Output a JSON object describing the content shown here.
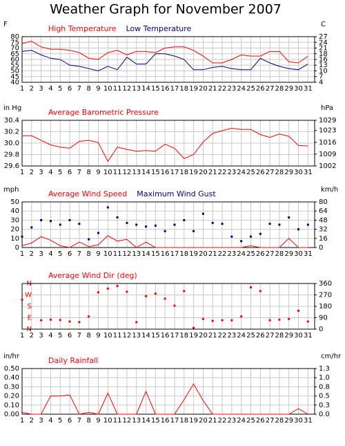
{
  "title": "Weather Graph for November 2007",
  "chart_data": [
    {
      "type": "line",
      "ylabel": "F",
      "y2label": "C",
      "x": [
        1,
        2,
        3,
        4,
        5,
        6,
        7,
        8,
        9,
        10,
        11,
        12,
        13,
        14,
        15,
        16,
        17,
        18,
        19,
        20,
        21,
        22,
        23,
        24,
        25,
        26,
        27,
        28,
        29,
        30,
        31
      ],
      "xlim": [
        1,
        31.7
      ],
      "xticks": [
        1,
        2,
        3,
        4,
        5,
        6,
        7,
        8,
        9,
        10,
        11,
        12,
        13,
        14,
        15,
        16,
        17,
        18,
        19,
        20,
        21,
        22,
        23,
        24,
        25,
        26,
        27,
        28,
        29,
        30,
        31
      ],
      "ylim": [
        40,
        80
      ],
      "yticks": [
        40,
        45,
        50,
        55,
        60,
        65,
        70,
        75,
        80
      ],
      "y2lim": [
        4.44,
        26.67
      ],
      "y2ticks": [
        {
          "value": 4.44,
          "label": "4"
        },
        {
          "value": 7.22,
          "label": "7"
        },
        10,
        {
          "value": 12.78,
          "label": "13"
        },
        {
          "value": 15.56,
          "label": "16"
        },
        {
          "value": 18.33,
          "label": "18"
        },
        {
          "value": 21.11,
          "label": "21"
        },
        {
          "value": 23.89,
          "label": "24"
        },
        {
          "value": 26.67,
          "label": "27"
        }
      ],
      "grid": true,
      "series": [
        {
          "name": "High Temperature",
          "color": "#ff0000",
          "values": [
            74,
            76,
            71,
            69,
            69,
            68,
            66,
            61,
            60,
            66,
            68,
            64,
            67,
            67,
            66,
            70,
            71,
            71,
            68,
            63,
            57,
            57,
            60,
            64,
            63,
            63,
            67,
            67,
            58,
            57,
            63
          ]
        },
        {
          "name": "Low Temperature",
          "color": "#000080",
          "values": [
            67,
            68,
            64,
            61,
            60,
            55,
            54,
            52,
            50,
            54,
            51,
            62,
            56,
            56,
            65,
            65,
            63,
            60,
            51,
            51,
            53,
            54,
            52,
            51,
            51,
            61,
            57,
            54,
            52,
            51,
            56
          ]
        }
      ]
    },
    {
      "type": "line",
      "ylabel": "in Hg",
      "y2label": "hPa",
      "x": [
        1,
        2,
        3,
        4,
        5,
        6,
        7,
        8,
        9,
        10,
        11,
        12,
        13,
        14,
        15,
        16,
        17,
        18,
        19,
        20,
        21,
        22,
        23,
        24,
        25,
        26,
        27,
        28,
        29,
        30,
        31
      ],
      "xlim": [
        1,
        31.7
      ],
      "xticks": [
        1,
        2,
        3,
        4,
        5,
        6,
        7,
        8,
        9,
        10,
        11,
        12,
        13,
        14,
        15,
        16,
        17,
        18,
        19,
        20,
        21,
        22,
        23,
        24,
        25,
        26,
        27,
        28,
        29,
        30,
        31
      ],
      "ylim": [
        29.6,
        30.4
      ],
      "yticks": [
        29.6,
        29.8,
        {
          "value": 30,
          "label": "30.0"
        },
        30.2,
        30.4
      ],
      "y2lim": [
        1002,
        1029
      ],
      "y2ticks": [
        1002,
        1009,
        1016,
        1023,
        1029
      ],
      "grid": true,
      "series": [
        {
          "name": "Average Barometric Pressure",
          "color": "#ff0000",
          "values": [
            30.13,
            30.13,
            30.05,
            29.97,
            29.93,
            29.91,
            30.03,
            30.05,
            30.01,
            29.68,
            29.93,
            29.89,
            29.86,
            29.87,
            29.86,
            29.98,
            29.91,
            29.73,
            29.8,
            30.02,
            30.17,
            30.22,
            30.26,
            30.24,
            30.24,
            30.15,
            30.1,
            30.16,
            30.12,
            29.96,
            29.95
          ]
        }
      ]
    },
    {
      "type": "line",
      "ylabel": "mph",
      "y2label": "km/h",
      "x": [
        1,
        2,
        3,
        4,
        5,
        6,
        7,
        8,
        9,
        10,
        11,
        12,
        13,
        14,
        15,
        16,
        17,
        18,
        19,
        20,
        21,
        22,
        23,
        24,
        25,
        26,
        27,
        28,
        29,
        30,
        31
      ],
      "xlim": [
        1,
        31.7
      ],
      "xticks": [
        1,
        2,
        3,
        4,
        5,
        6,
        7,
        8,
        9,
        10,
        11,
        12,
        13,
        14,
        15,
        16,
        17,
        18,
        19,
        20,
        21,
        22,
        23,
        24,
        25,
        26,
        27,
        28,
        29,
        30,
        31
      ],
      "ylim": [
        0,
        50
      ],
      "yticks": [
        0,
        10,
        20,
        30,
        40,
        50
      ],
      "y2lim": [
        0,
        80
      ],
      "y2ticks": [
        0,
        16,
        32,
        48,
        64,
        80
      ],
      "grid": true,
      "series": [
        {
          "name": "Average Wind Speed",
          "color": "#ff0000",
          "values": [
            2,
            5,
            12,
            8,
            2,
            0,
            6,
            1,
            3,
            13,
            7,
            9,
            0,
            6,
            0,
            0,
            0,
            0,
            0,
            0,
            0,
            0,
            0,
            0,
            2,
            0,
            0,
            0,
            10,
            0,
            0
          ]
        },
        {
          "name": "Maximum Wind Gust",
          "color": "#000080",
          "style": "points",
          "values": [
            12,
            22,
            30,
            29,
            25,
            30,
            26,
            9,
            16,
            44,
            33,
            27,
            25,
            23,
            24,
            18,
            25,
            30,
            18,
            37,
            27,
            26,
            12,
            7,
            12,
            15,
            26,
            25,
            33,
            20,
            25
          ]
        }
      ]
    },
    {
      "type": "scatter",
      "y2label": "",
      "x": [
        1,
        2,
        3,
        4,
        5,
        6,
        7,
        8,
        9,
        10,
        11,
        12,
        13,
        14,
        15,
        16,
        17,
        18,
        19,
        20,
        21,
        22,
        23,
        24,
        25,
        26,
        27,
        28,
        29,
        30,
        31
      ],
      "xlim": [
        1,
        31.7
      ],
      "xticks": [
        1,
        2,
        3,
        4,
        5,
        6,
        7,
        8,
        9,
        10,
        11,
        12,
        13,
        14,
        15,
        16,
        17,
        18,
        19,
        20,
        21,
        22,
        23,
        24,
        25,
        26,
        27,
        28,
        29,
        30,
        31
      ],
      "ylim": [
        0,
        360
      ],
      "yticks": [
        {
          "value": 0,
          "label": "N"
        },
        {
          "value": 90,
          "label": "E"
        },
        {
          "value": 180,
          "label": "S"
        },
        {
          "value": 270,
          "label": "W"
        },
        {
          "value": 360,
          "label": "N"
        }
      ],
      "ytick_color": "#ff0000",
      "y2lim": [
        0,
        360
      ],
      "y2ticks": [
        0,
        90,
        180,
        270,
        360
      ],
      "grid": true,
      "series": [
        {
          "name": "Average Wind Dir (deg)",
          "color": "#ff0000",
          "values": [
            232,
            null,
            70,
            75,
            72,
            60,
            55,
            100,
            290,
            320,
            340,
            295,
            55,
            260,
            280,
            240,
            185,
            300,
            10,
            80,
            65,
            70,
            70,
            100,
            330,
            300,
            70,
            75,
            80,
            145,
            60
          ]
        }
      ]
    },
    {
      "type": "line",
      "ylabel": "in/hr",
      "y2label": "cm/hr",
      "x": [
        1,
        2,
        3,
        4,
        5,
        6,
        7,
        8,
        9,
        10,
        11,
        12,
        13,
        14,
        15,
        16,
        17,
        18,
        19,
        20,
        21,
        22,
        23,
        24,
        25,
        26,
        27,
        28,
        29,
        30,
        31
      ],
      "xlim": [
        1,
        31.7
      ],
      "xticks": [
        1,
        2,
        3,
        4,
        5,
        6,
        7,
        8,
        9,
        10,
        11,
        12,
        13,
        14,
        15,
        16,
        17,
        18,
        19,
        20,
        21,
        22,
        23,
        24,
        25,
        26,
        27,
        28,
        29,
        30,
        31
      ],
      "ylim": [
        0,
        0.5
      ],
      "yticks": [
        {
          "value": 0,
          "label": "0.00"
        },
        {
          "value": 0.1,
          "label": "0.10"
        },
        {
          "value": 0.2,
          "label": "0.20"
        },
        {
          "value": 0.3,
          "label": "0.30"
        },
        {
          "value": 0.4,
          "label": "0.40"
        },
        {
          "value": 0.5,
          "label": "0.50"
        }
      ],
      "y2lim": [
        0,
        1.27
      ],
      "y2ticks": [
        {
          "value": 0,
          "label": "0.0"
        },
        {
          "value": 0.254,
          "label": "0.3"
        },
        {
          "value": 0.508,
          "label": "0.5"
        },
        {
          "value": 0.762,
          "label": "0.8"
        },
        {
          "value": 1.016,
          "label": "1.0"
        },
        {
          "value": 1.27,
          "label": "1.3"
        }
      ],
      "grid": true,
      "series": [
        {
          "name": "Daily Rainfall",
          "color": "#ff0000",
          "values": [
            0.02,
            0,
            0,
            0.2,
            0.2,
            0.21,
            0,
            0.02,
            0,
            0.23,
            0,
            0,
            0,
            0.25,
            0,
            0,
            0,
            0.16,
            0.33,
            0.15,
            0,
            0,
            0,
            0,
            0,
            0,
            0,
            0,
            0,
            0.06,
            0
          ]
        }
      ]
    }
  ]
}
